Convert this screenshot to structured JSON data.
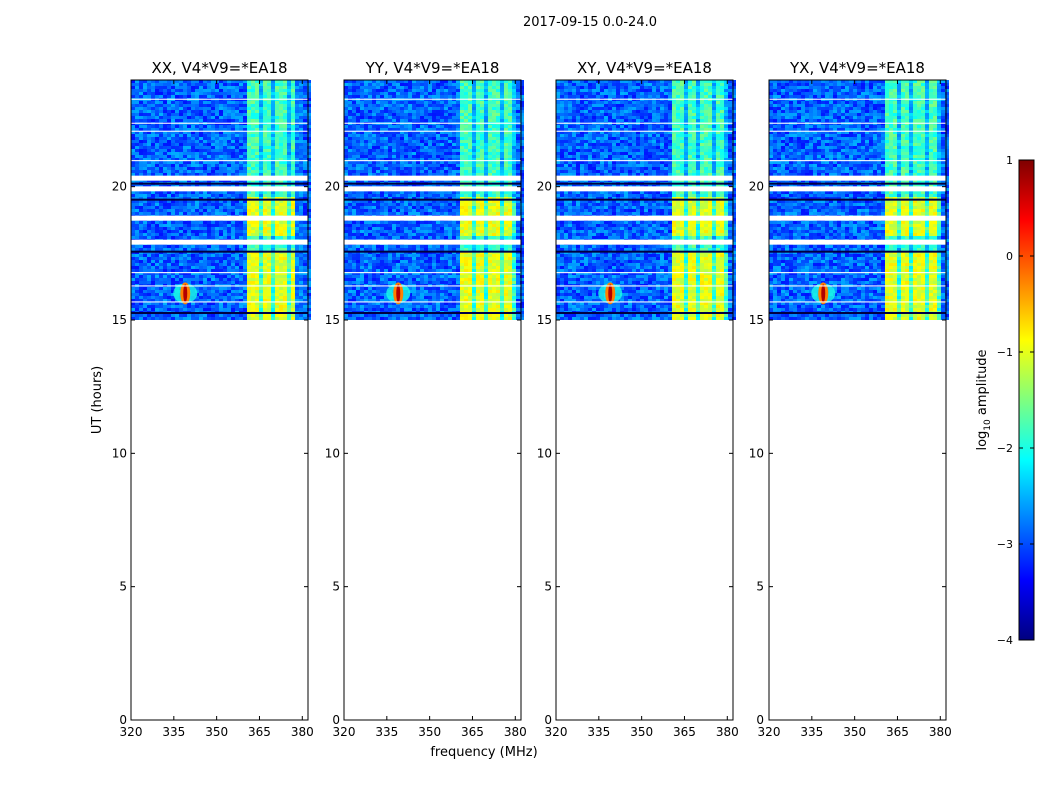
{
  "figure": {
    "suptitle": "2017-09-15 0.0-24.0",
    "ylabel": "UT (hours)",
    "xlabel": "frequency (MHz)"
  },
  "chart_data": [
    {
      "type": "heatmap",
      "title": "XX, V4*V9=*EA18",
      "xlim": [
        320,
        382
      ],
      "ylim": [
        0,
        24
      ],
      "xticks": [
        "320",
        "335",
        "350",
        "365",
        "380"
      ],
      "yticks": [
        "0",
        "5",
        "10",
        "15",
        "20"
      ],
      "data_time_range": [
        15.1,
        24.0
      ],
      "rfi_band_mhz": [
        360,
        379
      ],
      "hotspot": {
        "freq": 339,
        "time": 16.0
      },
      "blank_rows": [
        17.9,
        18.8,
        19.9,
        20.3
      ]
    },
    {
      "type": "heatmap",
      "title": "YY, V4*V9=*EA18",
      "xlim": [
        320,
        382
      ],
      "ylim": [
        0,
        24
      ],
      "xticks": [
        "320",
        "335",
        "350",
        "365",
        "380"
      ],
      "yticks": [
        "0",
        "5",
        "10",
        "15",
        "20"
      ],
      "data_time_range": [
        15.1,
        24.0
      ],
      "rfi_band_mhz": [
        360,
        379
      ],
      "hotspot": {
        "freq": 339,
        "time": 16.0
      },
      "blank_rows": [
        17.9,
        18.8,
        19.9,
        20.3
      ]
    },
    {
      "type": "heatmap",
      "title": "XY, V4*V9=*EA18",
      "xlim": [
        320,
        382
      ],
      "ylim": [
        0,
        24
      ],
      "xticks": [
        "320",
        "335",
        "350",
        "365",
        "380"
      ],
      "yticks": [
        "0",
        "5",
        "10",
        "15",
        "20"
      ],
      "data_time_range": [
        15.1,
        24.0
      ],
      "rfi_band_mhz": [
        360,
        379
      ],
      "hotspot": {
        "freq": 339,
        "time": 16.0
      },
      "blank_rows": [
        17.9,
        18.8,
        19.9,
        20.3
      ]
    },
    {
      "type": "heatmap",
      "title": "YX, V4*V9=*EA18",
      "xlim": [
        320,
        382
      ],
      "ylim": [
        0,
        24
      ],
      "xticks": [
        "320",
        "335",
        "350",
        "365",
        "380"
      ],
      "yticks": [
        "0",
        "5",
        "10",
        "15",
        "20"
      ],
      "data_time_range": [
        15.1,
        24.0
      ],
      "rfi_band_mhz": [
        360,
        379
      ],
      "hotspot": {
        "freq": 339,
        "time": 16.0
      },
      "blank_rows": [
        17.9,
        18.8,
        19.9,
        20.3
      ]
    }
  ],
  "colorbar": {
    "label": "log10 amplitude",
    "label_base": "log",
    "label_sub": "10",
    "label_rest": " amplitude",
    "range": [
      -4,
      1
    ],
    "ticks": [
      "1",
      "0",
      "−1",
      "−2",
      "−3",
      "−4"
    ],
    "colormap": "jet",
    "colors": [
      "#00007f",
      "#0000ff",
      "#007fff",
      "#00ffff",
      "#7fff7f",
      "#ffff00",
      "#ff7f00",
      "#ff0000",
      "#7f0000"
    ]
  }
}
